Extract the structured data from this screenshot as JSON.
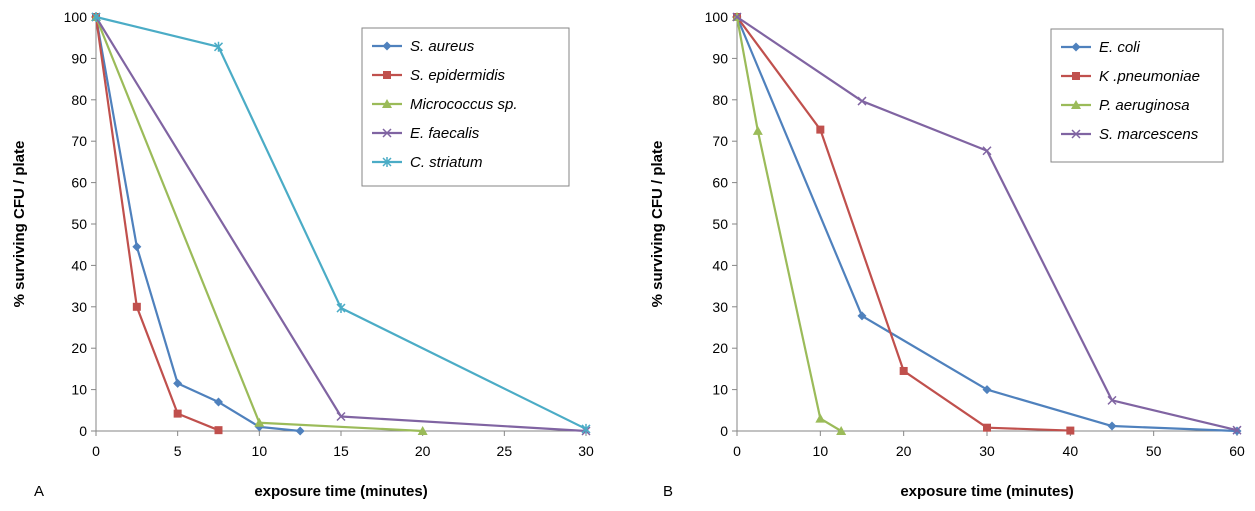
{
  "chart_data": [
    {
      "type": "line",
      "panel_label": "A",
      "title": "",
      "xlabel": "exposure time (minutes)",
      "ylabel": "% surviving CFU / plate",
      "xlim": [
        0,
        30
      ],
      "ylim": [
        0,
        100
      ],
      "xticks": [
        0,
        5,
        10,
        15,
        20,
        25,
        30
      ],
      "yticks": [
        0,
        10,
        20,
        30,
        40,
        50,
        60,
        70,
        80,
        90,
        100
      ],
      "grid": false,
      "legend_position": "top-right",
      "series": [
        {
          "name": "S. aureus",
          "color": "#4F81BD",
          "marker": "diamond",
          "x": [
            0,
            2.5,
            5,
            7.5,
            10,
            12.5
          ],
          "y": [
            100,
            44.5,
            11.5,
            7,
            1,
            0
          ]
        },
        {
          "name": "S. epidermidis",
          "color": "#C0504D",
          "marker": "square",
          "x": [
            0,
            2.5,
            5,
            7.5
          ],
          "y": [
            100,
            30,
            4.2,
            0.2
          ]
        },
        {
          "name": "Micrococcus sp.",
          "color": "#9BBB59",
          "marker": "triangle",
          "x": [
            0,
            10,
            20
          ],
          "y": [
            100,
            2,
            0
          ]
        },
        {
          "name": "E. faecalis",
          "color": "#8064A2",
          "marker": "x",
          "x": [
            0,
            15,
            30
          ],
          "y": [
            100,
            3.5,
            0
          ]
        },
        {
          "name": "C. striatum",
          "color": "#4BACC6",
          "marker": "star",
          "x": [
            0,
            7.5,
            15,
            30
          ],
          "y": [
            100,
            92.8,
            29.7,
            0.5
          ]
        }
      ]
    },
    {
      "type": "line",
      "panel_label": "B",
      "title": "",
      "xlabel": "exposure time (minutes)",
      "ylabel": "% surviving CFU / plate",
      "xlim": [
        0,
        60
      ],
      "ylim": [
        0,
        100
      ],
      "xticks": [
        0,
        10,
        20,
        30,
        40,
        50,
        60
      ],
      "yticks": [
        0,
        10,
        20,
        30,
        40,
        50,
        60,
        70,
        80,
        90,
        100
      ],
      "grid": false,
      "legend_position": "top-right",
      "series": [
        {
          "name": "E. coli",
          "color": "#4F81BD",
          "marker": "diamond",
          "x": [
            0,
            15,
            30,
            45,
            60
          ],
          "y": [
            100,
            27.8,
            10,
            1.2,
            0
          ]
        },
        {
          "name": "K .pneumoniae",
          "color": "#C0504D",
          "marker": "square",
          "x": [
            0,
            10,
            20,
            30,
            40
          ],
          "y": [
            100,
            72.8,
            14.5,
            0.8,
            0.1
          ]
        },
        {
          "name": "P. aeruginosa",
          "color": "#9BBB59",
          "marker": "triangle",
          "x": [
            0,
            2.5,
            10,
            12.5
          ],
          "y": [
            100,
            72.5,
            3,
            0
          ]
        },
        {
          "name": "S. marcescens",
          "color": "#8064A2",
          "marker": "x",
          "x": [
            0,
            15,
            30,
            45,
            60
          ],
          "y": [
            100,
            79.7,
            67.7,
            7.4,
            0.2
          ]
        }
      ]
    }
  ]
}
